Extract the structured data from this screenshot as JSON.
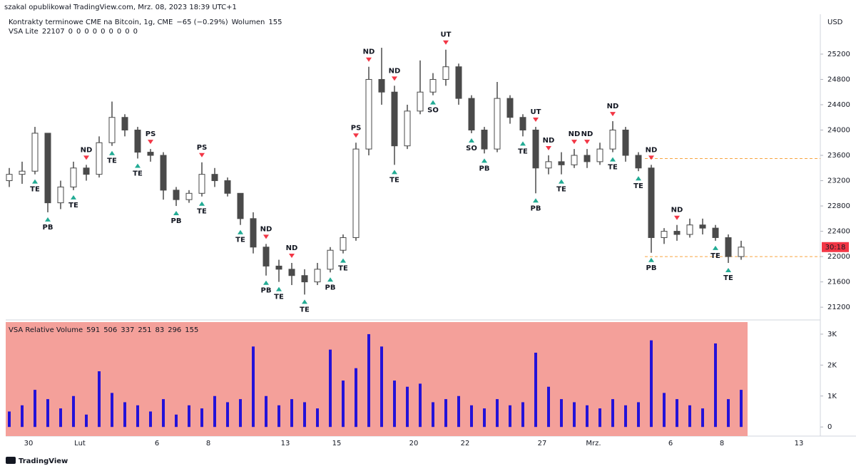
{
  "header": {
    "author": "szakal opublikował TradingView.com, Mrz. 08, 2023 18:39 UTC+1"
  },
  "chart_data": {
    "type": "candlestick",
    "symbol": "Kontrakty terminowe CME na Bitcoin, 1g, CME",
    "change": "−65 (−0.29%)",
    "volume_label": "Wolumen",
    "volume_value": 155,
    "indicator": "VSA Lite",
    "indicator_value": 22107,
    "indicator_flags": [
      0,
      0,
      0,
      0,
      0,
      0,
      0,
      0,
      0
    ],
    "currency": "USD",
    "countdown": "30:18",
    "categories": [
      null,
      null,
      "30",
      null,
      null,
      null,
      "Lut",
      null,
      null,
      null,
      null,
      null,
      "6",
      null,
      null,
      null,
      "8",
      null,
      null,
      null,
      null,
      null,
      "13",
      null,
      null,
      null,
      "15",
      null,
      null,
      null,
      null,
      null,
      "20",
      null,
      null,
      null,
      "22",
      null,
      null,
      null,
      null,
      null,
      "27",
      null,
      null,
      null,
      "Mrz.",
      null,
      null,
      null,
      null,
      null,
      "6",
      null,
      null,
      null,
      "8",
      null,
      null,
      null,
      null,
      null,
      "13"
    ],
    "open": [
      23200,
      23300,
      23350,
      23950,
      22850,
      23100,
      23400,
      23300,
      23800,
      24200,
      24000,
      23650,
      23600,
      23050,
      22900,
      23000,
      23300,
      23200,
      23000,
      22600,
      22150,
      21850,
      21800,
      21700,
      21600,
      21800,
      22100,
      22300,
      23700,
      24800,
      24600,
      23750,
      24300,
      24600,
      24800,
      25000,
      24500,
      24000,
      23700,
      24500,
      24200,
      24000,
      23400,
      23500,
      23450,
      23600,
      23500,
      23700,
      24000,
      23600,
      23400,
      22300,
      22400,
      22350,
      22500,
      22450,
      22300,
      22000,
      null,
      null,
      null,
      null,
      null
    ],
    "high": [
      23400,
      23500,
      24050,
      23950,
      23200,
      23500,
      23450,
      23900,
      24450,
      24250,
      24050,
      23700,
      23650,
      23100,
      23050,
      23490,
      23400,
      23250,
      23000,
      22700,
      22200,
      21950,
      21900,
      21800,
      21900,
      22150,
      22350,
      23800,
      25000,
      25300,
      24700,
      24400,
      25100,
      24900,
      25270,
      25050,
      24550,
      24050,
      24760,
      24550,
      24250,
      24050,
      23600,
      23650,
      23700,
      23700,
      23800,
      24140,
      24050,
      23650,
      23450,
      22450,
      22500,
      22600,
      22600,
      22500,
      22350,
      22250,
      null,
      null,
      null,
      null,
      null
    ],
    "low": [
      23100,
      23150,
      23300,
      22700,
      22750,
      23050,
      23200,
      23250,
      23750,
      23900,
      23550,
      23500,
      22900,
      22800,
      22850,
      22950,
      23100,
      22950,
      22500,
      22050,
      21700,
      21600,
      21550,
      21400,
      21550,
      21750,
      22050,
      22250,
      23600,
      24400,
      23450,
      23700,
      24250,
      24550,
      24700,
      24400,
      23950,
      23630,
      23650,
      24100,
      23900,
      23000,
      23300,
      23300,
      23400,
      23400,
      23450,
      23650,
      23500,
      23350,
      22060,
      22200,
      22250,
      22300,
      22350,
      22250,
      21900,
      21950,
      null,
      null,
      null,
      null,
      null
    ],
    "close": [
      23300,
      23350,
      23950,
      22850,
      23100,
      23400,
      23300,
      23800,
      24200,
      24000,
      23650,
      23600,
      23050,
      22900,
      23000,
      23300,
      23200,
      23000,
      22600,
      22150,
      21850,
      21800,
      21700,
      21600,
      21800,
      22100,
      22300,
      23700,
      24800,
      24600,
      23750,
      24300,
      24600,
      24800,
      25000,
      24500,
      24000,
      23700,
      24500,
      24200,
      24000,
      23400,
      23500,
      23450,
      23600,
      23500,
      23700,
      24000,
      23600,
      23400,
      22300,
      22400,
      22350,
      22500,
      22450,
      22300,
      22000,
      22150,
      null,
      null,
      null,
      null,
      null
    ],
    "color": "#4a4a4a",
    "ylim": [
      21010,
      25830
    ],
    "yticks": [
      21200,
      21600,
      22000,
      22400,
      22800,
      23200,
      23600,
      24000,
      24400,
      24800,
      25200
    ],
    "levels": [
      23550,
      22000
    ],
    "level_color": "#f7a541",
    "countdown_color": "#f23645",
    "signals_above": [
      null,
      null,
      null,
      null,
      null,
      null,
      "ND",
      null,
      null,
      null,
      null,
      "PS",
      null,
      null,
      null,
      "PS",
      null,
      null,
      null,
      null,
      "ND",
      null,
      "ND",
      null,
      null,
      null,
      null,
      "PS",
      "ND",
      null,
      "ND",
      null,
      null,
      null,
      "UT",
      null,
      null,
      null,
      null,
      null,
      null,
      "UT",
      "ND",
      null,
      "ND",
      "ND",
      null,
      "ND",
      null,
      null,
      "ND",
      null,
      "ND",
      null,
      null,
      null,
      null,
      null,
      null,
      null,
      null,
      null,
      null
    ],
    "signals_below": [
      null,
      null,
      "TE",
      "PB",
      null,
      "TE",
      null,
      null,
      "TE",
      null,
      "TE",
      null,
      null,
      "PB",
      null,
      "TE",
      null,
      null,
      "TE",
      null,
      "PB",
      "TE",
      null,
      "TE",
      null,
      "PB",
      "TE",
      null,
      null,
      null,
      "TE",
      null,
      null,
      "SO",
      null,
      null,
      "SO",
      "PB",
      null,
      null,
      "TE",
      "PB",
      null,
      "TE",
      null,
      null,
      null,
      "TE",
      null,
      "TE",
      "PB",
      null,
      null,
      null,
      null,
      "TE",
      "TE",
      null,
      null,
      null,
      null,
      null,
      null
    ],
    "signal_colors": {
      "TE": "#22ab94",
      "PB": "#22ab94",
      "SO": "#22ab94",
      "ND": "#f23645",
      "PS": "#f23645",
      "UT": "#f23645"
    },
    "volume_panel": {
      "title": "VSA Relative Volume",
      "stats": [
        591,
        506,
        337,
        251,
        83,
        296,
        155
      ],
      "stats_colors": [
        "#f7a0b5",
        "#c9c3f2",
        "#d8d2f5",
        "#f58fb0",
        "#3e8c86",
        "#333333",
        "#e81ec0"
      ],
      "values": [
        500,
        700,
        1200,
        900,
        600,
        1000,
        400,
        1800,
        1100,
        800,
        700,
        500,
        900,
        400,
        700,
        600,
        1000,
        800,
        900,
        2600,
        1000,
        700,
        900,
        800,
        600,
        2500,
        1500,
        1900,
        3000,
        2600,
        1500,
        1300,
        1400,
        800,
        900,
        1000,
        700,
        600,
        900,
        700,
        800,
        2400,
        1300,
        900,
        800,
        700,
        600,
        900,
        700,
        800,
        2800,
        1100,
        900,
        700,
        600,
        2700,
        900,
        1200,
        null,
        null,
        null,
        null,
        null
      ],
      "color": "#2412d8",
      "background": "#f4a09a",
      "ylim": [
        -295,
        3390
      ],
      "yticks": [
        0,
        {
          "value": 1000,
          "label": "1K"
        },
        {
          "value": 2000,
          "label": "2K"
        },
        {
          "value": 3000,
          "label": "3K"
        }
      ]
    }
  },
  "footer": {
    "brand": "TradingView"
  }
}
